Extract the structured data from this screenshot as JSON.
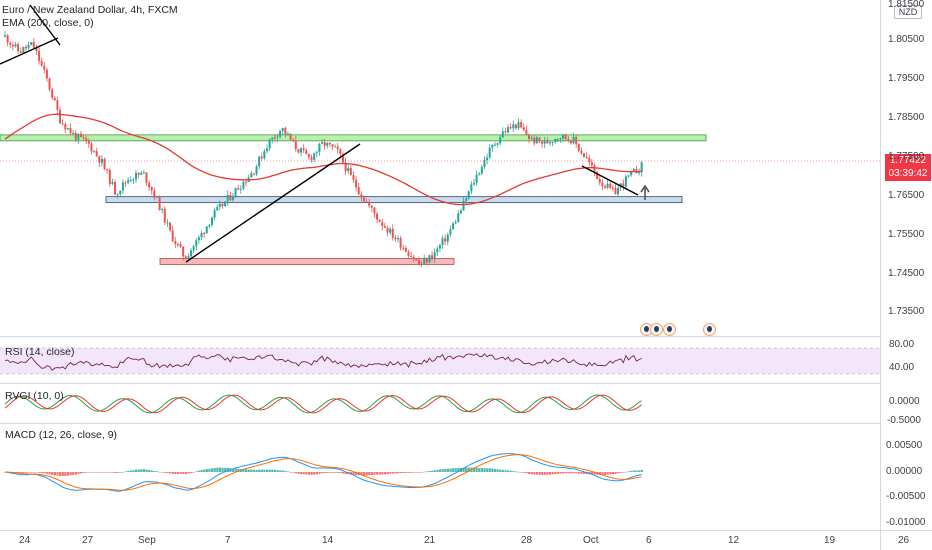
{
  "header": {
    "symbol_line": "Euro / New Zealand Dollar, 4h, FXCM",
    "ema_line": "EMA (200, close, 0)"
  },
  "price_axis": {
    "currency": "NZD",
    "ticks": [
      "1.81500",
      "1.80500",
      "1.79500",
      "1.78500",
      "1.77500",
      "1.76500",
      "1.75500",
      "1.74500",
      "1.73500"
    ],
    "last_price": "1.77422",
    "countdown": "03:39:42"
  },
  "indicators": {
    "rsi": {
      "label": "RSI (14, close)",
      "ticks": [
        "80.00",
        "40.00"
      ]
    },
    "rvgi": {
      "label": "RVGI (10, 0)",
      "ticks": [
        "0.0000",
        "-0.5000"
      ]
    },
    "macd": {
      "label": "MACD (12, 26, close, 9)",
      "ticks": [
        "0.00500",
        "0.00000",
        "-0.00500",
        "-0.01000"
      ]
    }
  },
  "time_axis": {
    "ticks": [
      "24",
      "27",
      "Sep",
      "7",
      "14",
      "21",
      "28",
      "Oct",
      "6",
      "12",
      "19",
      "26"
    ]
  },
  "colors": {
    "up": "#26a69a",
    "down": "#ef5350",
    "ema": "#e53935",
    "resistance_zone": "#b9f0b0",
    "support_zone": "#c8dcf0",
    "low_zone": "#f5b7b7",
    "rsi_band": "#f3e6fb",
    "rsi_line": "#7b1f4e"
  },
  "chart_data": {
    "type": "candlestick",
    "symbol": "EURNZD",
    "timeframe": "4h",
    "ylim": [
      1.73,
      1.8165
    ],
    "zones": [
      {
        "role": "resistance",
        "from": 1.7808,
        "to": 1.7822
      },
      {
        "role": "support",
        "from": 1.7652,
        "to": 1.766
      },
      {
        "role": "low",
        "from": 1.749,
        "to": 1.7498
      }
    ],
    "price_path": [
      1.808,
      1.804,
      1.806,
      1.797,
      1.786,
      1.782,
      1.78,
      1.775,
      1.767,
      1.771,
      1.772,
      1.765,
      1.756,
      1.75,
      1.755,
      1.761,
      1.765,
      1.769,
      1.773,
      1.78,
      1.784,
      1.779,
      1.776,
      1.78,
      1.778,
      1.771,
      1.765,
      1.76,
      1.756,
      1.752,
      1.748,
      1.751,
      1.756,
      1.763,
      1.771,
      1.778,
      1.783,
      1.785,
      1.781,
      1.78,
      1.782,
      1.781,
      1.776,
      1.77,
      1.767,
      1.771,
      1.774
    ]
  }
}
